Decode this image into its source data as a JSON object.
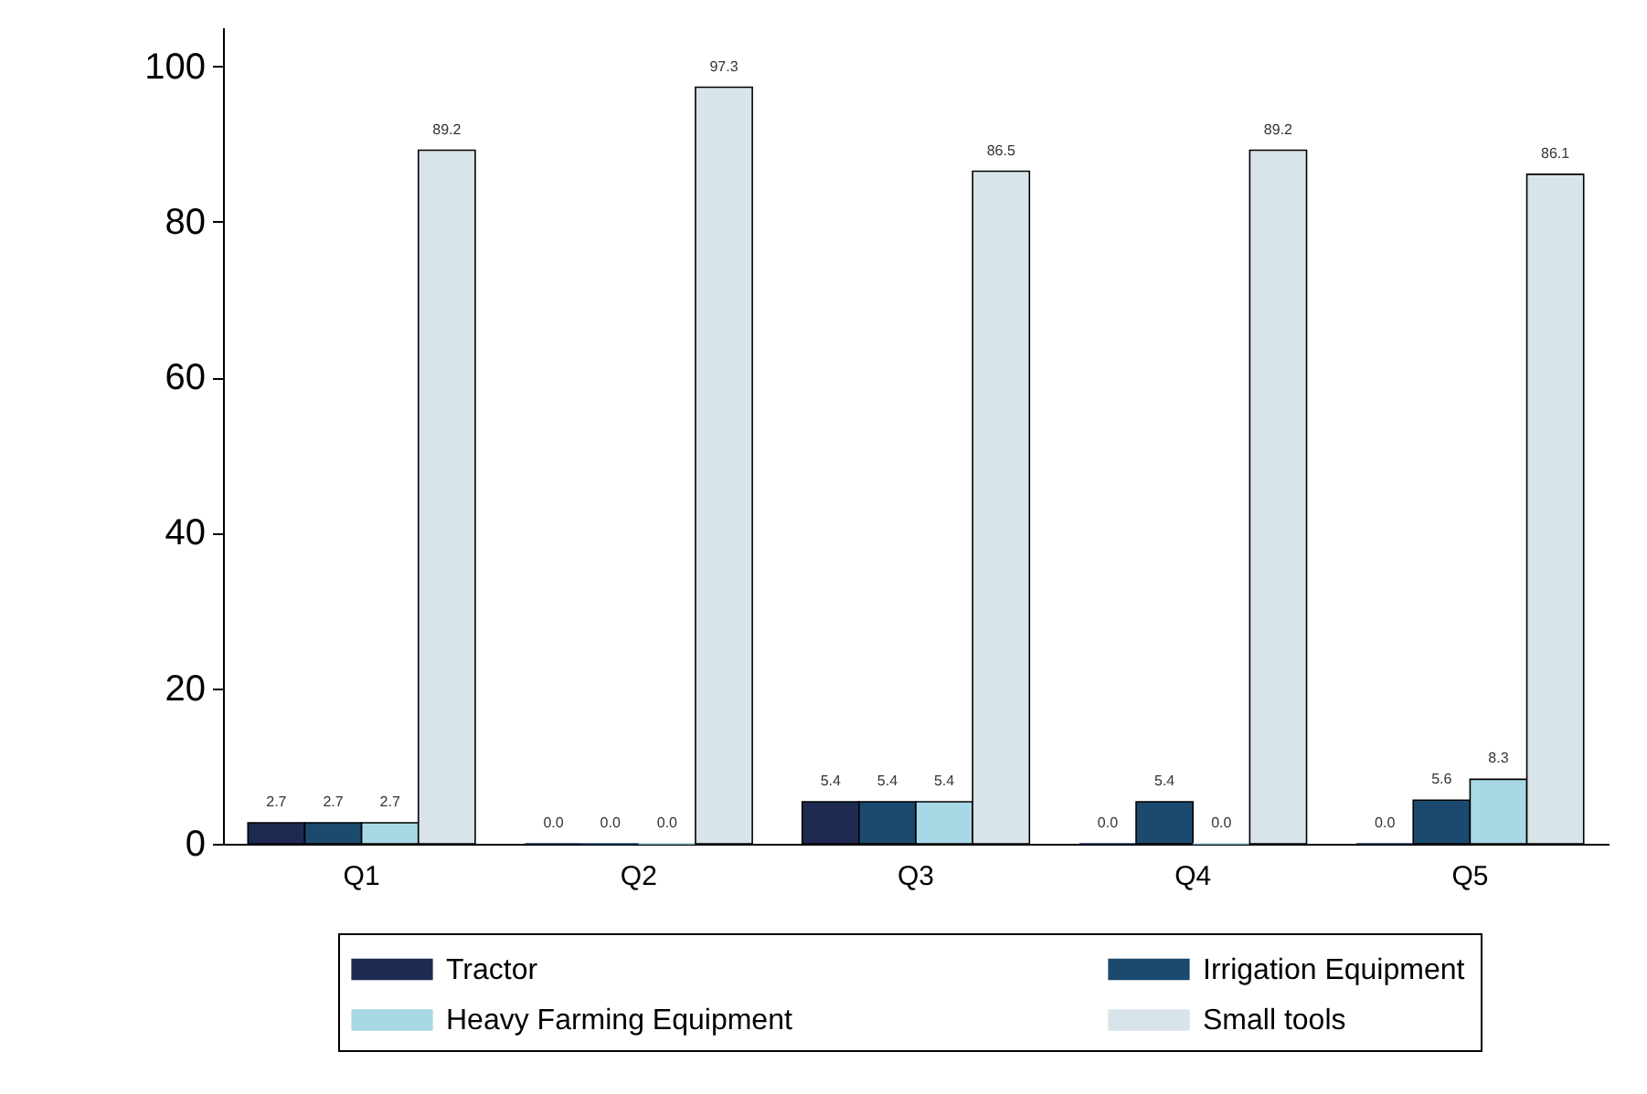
{
  "chart_data": {
    "type": "bar",
    "categories": [
      "Q1",
      "Q2",
      "Q3",
      "Q4",
      "Q5"
    ],
    "series": [
      {
        "name": "Tractor",
        "color": "#1f2a52",
        "values": [
          2.7,
          0.0,
          5.4,
          0.0,
          0.0
        ],
        "value_labels": [
          "2.7",
          "0.0",
          "5.4",
          "0.0",
          "0.0"
        ]
      },
      {
        "name": "Irrigation Equipment",
        "color": "#1b4a6e",
        "values": [
          2.7,
          0.0,
          5.4,
          5.4,
          5.6
        ],
        "value_labels": [
          "2.7",
          "0.0",
          "5.4",
          "5.4",
          "5.6"
        ]
      },
      {
        "name": "Heavy Farming Equipment",
        "color": "#a8d8e6",
        "values": [
          2.7,
          0.0,
          5.4,
          0.0,
          8.3
        ],
        "value_labels": [
          "2.7",
          "0.0",
          "5.4",
          "0.0",
          "8.3"
        ]
      },
      {
        "name": "Small tools",
        "color": "#d7e4ea",
        "values": [
          89.2,
          97.3,
          86.5,
          89.2,
          86.1
        ],
        "value_labels": [
          "89.2",
          "97.3",
          "86.5",
          "89.2",
          "86.1"
        ]
      }
    ],
    "ylim": [
      0,
      105
    ],
    "yticks": [
      0,
      20,
      40,
      60,
      80,
      100
    ],
    "grid": false,
    "legend": "bottom"
  }
}
